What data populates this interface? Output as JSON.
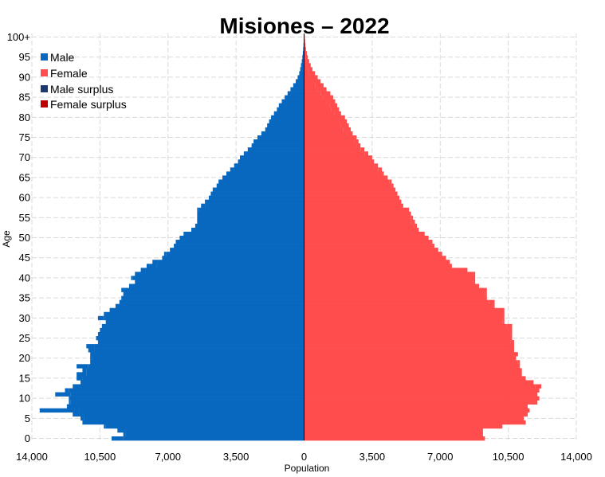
{
  "colors": {
    "male": "#0868c0",
    "female": "#ff4d4d",
    "male_surplus": "#1c3a6e",
    "female_surplus": "#c00000",
    "grid": "#d9d9d9"
  },
  "chart_data": {
    "type": "bar",
    "orientation": "horizontal-pyramid",
    "title": "Misiones – 2022",
    "xlabel": "Population",
    "ylabel": "Age",
    "xlim": [
      -14000,
      14000
    ],
    "x_ticks": [
      -14000,
      -10500,
      -7000,
      -3500,
      0,
      3500,
      7000,
      10500,
      14000
    ],
    "x_tick_labels": [
      "14,000",
      "10,500",
      "7,000",
      "3,500",
      "0",
      "3,500",
      "7,000",
      "10,500",
      "14,000"
    ],
    "y_ticks": [
      0,
      5,
      10,
      15,
      20,
      25,
      30,
      35,
      40,
      45,
      50,
      55,
      60,
      65,
      70,
      75,
      80,
      85,
      90,
      95,
      100
    ],
    "y_tick_labels": [
      "0",
      "5",
      "10",
      "15",
      "20",
      "25",
      "30",
      "35",
      "40",
      "45",
      "50",
      "55",
      "60",
      "65",
      "70",
      "75",
      "80",
      "85",
      "90",
      "95",
      "100+"
    ],
    "grid": true,
    "legend_position": "top-left",
    "legend": [
      "Male",
      "Female",
      "Male surplus",
      "Female surplus"
    ],
    "categories": [
      "0",
      "1",
      "2",
      "3",
      "4",
      "5",
      "6",
      "7",
      "8",
      "9",
      "10",
      "11",
      "12",
      "13",
      "14",
      "15",
      "16",
      "17",
      "18",
      "19",
      "20",
      "21",
      "22",
      "23",
      "24",
      "25",
      "26",
      "27",
      "28",
      "29",
      "30",
      "31",
      "32",
      "33",
      "34",
      "35",
      "36",
      "37",
      "38",
      "39",
      "40",
      "41",
      "42",
      "43",
      "44",
      "45",
      "46",
      "47",
      "48",
      "49",
      "50",
      "51",
      "52",
      "53",
      "54",
      "55",
      "56",
      "57",
      "58",
      "59",
      "60",
      "61",
      "62",
      "63",
      "64",
      "65",
      "66",
      "67",
      "68",
      "69",
      "70",
      "71",
      "72",
      "73",
      "74",
      "75",
      "76",
      "77",
      "78",
      "79",
      "80",
      "81",
      "82",
      "83",
      "84",
      "85",
      "86",
      "87",
      "88",
      "89",
      "90",
      "91",
      "92",
      "93",
      "94",
      "95",
      "96",
      "97",
      "98",
      "99",
      "100+"
    ],
    "series": [
      {
        "name": "Male",
        "values": [
          9900,
          9300,
          9600,
          10300,
          11400,
          11500,
          11900,
          13600,
          12200,
          12100,
          12100,
          12800,
          12300,
          11900,
          11500,
          11700,
          11700,
          11400,
          11700,
          11000,
          11000,
          11000,
          11100,
          11200,
          10600,
          10700,
          10600,
          10500,
          10400,
          10200,
          10600,
          10300,
          10000,
          9700,
          9500,
          9400,
          9300,
          9400,
          9000,
          8700,
          8900,
          8700,
          8400,
          8100,
          7800,
          7300,
          7200,
          6900,
          6700,
          6600,
          6400,
          6200,
          5800,
          5600,
          5500,
          5500,
          5500,
          5500,
          5300,
          5100,
          4900,
          4800,
          4700,
          4500,
          4400,
          4200,
          4000,
          3800,
          3600,
          3400,
          3300,
          3100,
          2900,
          2700,
          2600,
          2400,
          2200,
          2000,
          1900,
          1800,
          1700,
          1550,
          1400,
          1300,
          1150,
          1000,
          850,
          700,
          560,
          430,
          330,
          250,
          200,
          160,
          120,
          90,
          65,
          45,
          30,
          20,
          15
        ],
        "surplus": [
          0,
          0,
          0,
          0,
          0,
          0,
          0,
          0,
          0,
          0,
          0,
          0,
          0,
          0,
          0,
          0,
          0,
          0,
          0,
          0,
          0,
          0,
          0,
          0,
          0,
          0,
          0,
          0,
          0,
          0,
          0,
          0,
          0,
          0,
          0,
          0,
          0,
          0,
          0,
          0,
          0,
          0,
          0,
          0,
          0,
          0,
          0,
          0,
          0,
          0,
          0,
          0,
          0,
          0,
          0,
          0,
          0,
          0,
          0,
          0,
          0,
          0,
          0,
          0,
          0,
          0,
          0,
          0,
          0,
          0,
          0,
          0,
          0,
          0,
          0,
          0,
          0,
          0,
          0,
          0,
          0,
          0,
          0,
          0,
          0,
          0,
          0,
          0,
          0,
          0,
          0,
          0,
          0,
          0,
          0,
          0,
          0,
          0,
          0,
          0,
          0
        ]
      },
      {
        "name": "Female",
        "values": [
          9300,
          9200,
          9200,
          10200,
          11400,
          11300,
          11500,
          11600,
          11500,
          12000,
          12100,
          12000,
          12100,
          12200,
          11800,
          11400,
          11200,
          11200,
          11100,
          11100,
          10900,
          11000,
          10800,
          10800,
          10800,
          10700,
          10700,
          10700,
          10700,
          10300,
          10300,
          10300,
          10300,
          9800,
          9800,
          9400,
          9400,
          9400,
          9000,
          8800,
          8800,
          8800,
          8400,
          7600,
          7500,
          7300,
          7100,
          6900,
          6700,
          6600,
          6400,
          6200,
          5900,
          5800,
          5700,
          5600,
          5500,
          5400,
          5100,
          5000,
          4900,
          4800,
          4700,
          4600,
          4500,
          4300,
          4100,
          4000,
          3800,
          3600,
          3500,
          3300,
          3100,
          2900,
          2800,
          2700,
          2500,
          2400,
          2300,
          2200,
          2100,
          1900,
          1800,
          1700,
          1600,
          1500,
          1350,
          1150,
          1000,
          850,
          700,
          560,
          430,
          340,
          260,
          190,
          140,
          100,
          70,
          45,
          30
        ],
        "surplus": [
          0,
          0,
          0,
          0,
          0,
          0,
          0,
          0,
          0,
          0,
          0,
          0,
          0,
          0,
          0,
          0,
          0,
          0,
          0,
          0,
          0,
          0,
          0,
          0,
          0,
          0,
          0,
          0,
          0,
          0,
          0,
          0,
          0,
          0,
          0,
          0,
          0,
          0,
          0,
          0,
          0,
          0,
          0,
          0,
          0,
          0,
          0,
          0,
          0,
          0,
          0,
          0,
          0,
          0,
          0,
          0,
          0,
          0,
          0,
          0,
          0,
          0,
          0,
          0,
          0,
          0,
          0,
          0,
          0,
          0,
          0,
          0,
          0,
          0,
          0,
          0,
          0,
          0,
          0,
          0,
          0,
          0,
          0,
          0,
          0,
          0,
          0,
          0,
          0,
          0,
          0,
          0,
          0,
          0,
          0,
          0,
          0,
          0,
          0,
          0,
          0
        ]
      }
    ]
  }
}
